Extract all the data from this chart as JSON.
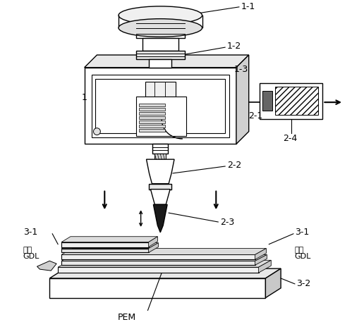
{
  "bg_color": "#ffffff",
  "line_color": "#000000",
  "labels": {
    "1": "1",
    "1-1": "1-1",
    "1-2": "1-2",
    "1-3": "1-3",
    "2-1": "2-1",
    "2-2": "2-2",
    "2-3": "2-3",
    "2-4": "2-4",
    "3-1_left": "3-1",
    "3-1_right": "3-1",
    "3-2": "3-2",
    "jiaodai_left": "胶带",
    "GDL_left": "GDL",
    "jiaodai_right": "胶带",
    "GDL_right": "GDL",
    "PEM": "PEM"
  },
  "figsize": [
    4.99,
    4.57
  ],
  "dpi": 100
}
